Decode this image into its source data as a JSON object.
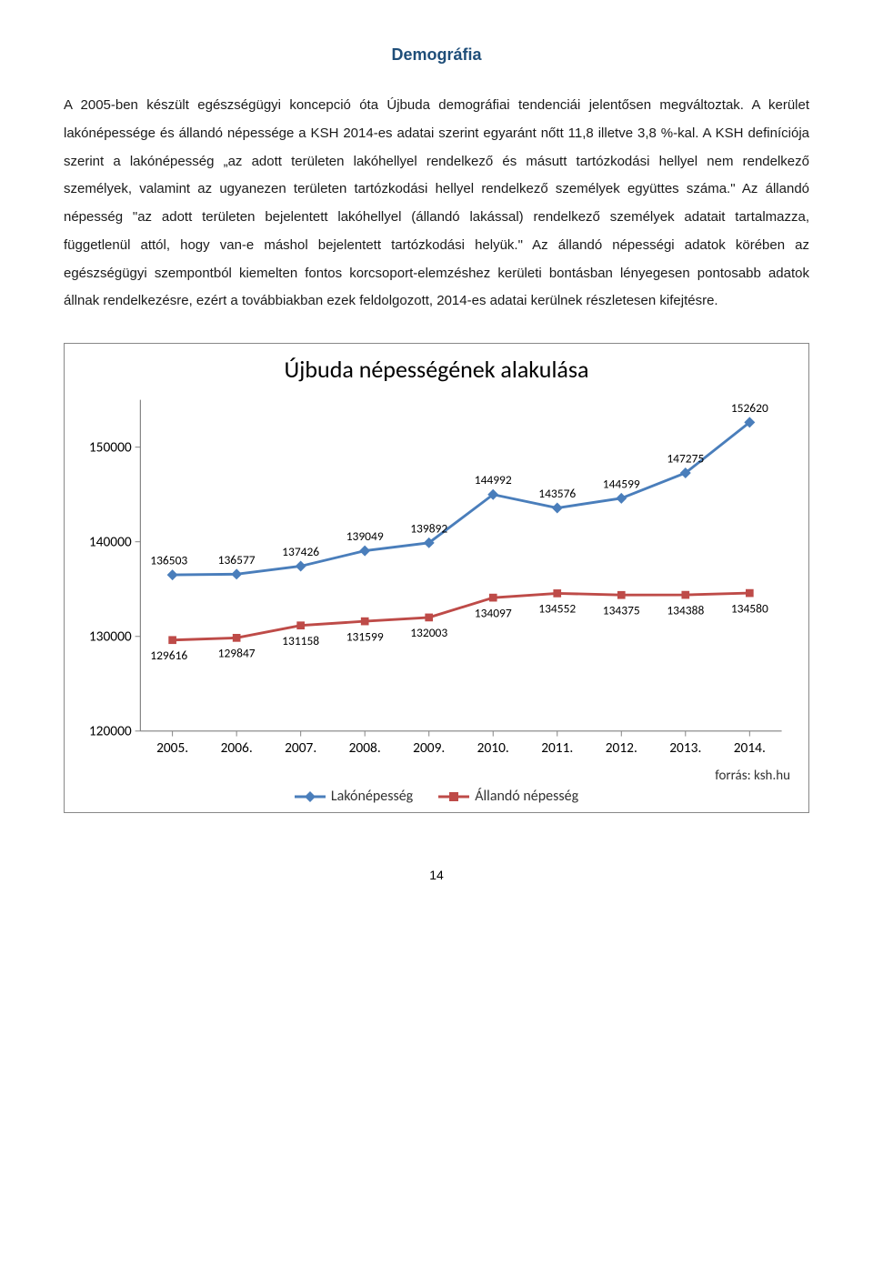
{
  "heading": "Demográfia",
  "paragraph": "A 2005-ben készült egészségügyi koncepció óta Újbuda demográfiai tendenciái jelentősen megváltoztak. A kerület lakónépessége és állandó népessége a KSH 2014-es adatai szerint egyaránt nőtt 11,8 illetve 3,8 %-kal. A KSH definíciója szerint a lakónépesség „az adott területen lakóhellyel rendelkező és másutt tartózkodási hellyel nem rendelkező személyek, valamint az ugyanezen területen tartózkodási hellyel rendelkező személyek együttes száma.\" Az állandó népesség \"az adott területen bejelentett lakóhellyel (állandó lakással) rendelkező személyek adatait tartalmazza, függetlenül attól, hogy van-e máshol bejelentett tartózkodási helyük.\" Az állandó népességi adatok körében az egészségügyi szempontból kiemelten fontos korcsoport-elemzéshez kerületi bontásban lényegesen pontosabb adatok állnak rendelkezésre, ezért a továbbiakban ezek feldolgozott, 2014-es adatai kerülnek részletesen kifejtésre.",
  "chart": {
    "type": "line",
    "title": "Újbuda népességének alakulása",
    "categories": [
      "2005.",
      "2006.",
      "2007.",
      "2008.",
      "2009.",
      "2010.",
      "2011.",
      "2012.",
      "2013.",
      "2014."
    ],
    "series": [
      {
        "name": "Lakónépesség",
        "color": "#4a7ebb",
        "marker": "diamond",
        "marker_size": 9,
        "line_width": 3,
        "values": [
          136503,
          136577,
          137426,
          139049,
          139892,
          144992,
          143576,
          144599,
          147275,
          152620
        ]
      },
      {
        "name": "Állandó népesség",
        "color": "#be4b48",
        "marker": "square",
        "marker_size": 8,
        "line_width": 3,
        "values": [
          129616,
          129847,
          131158,
          131599,
          132003,
          134097,
          134552,
          134375,
          134388,
          134580
        ]
      }
    ],
    "ylim": [
      120000,
      155000
    ],
    "yticks": [
      120000,
      130000,
      140000,
      150000
    ],
    "axis_color": "#808080",
    "tick_font_size": 16,
    "label_font_size": 14,
    "background_color": "#ffffff",
    "source": "forrás: ksh.hu"
  },
  "page_number": "14"
}
